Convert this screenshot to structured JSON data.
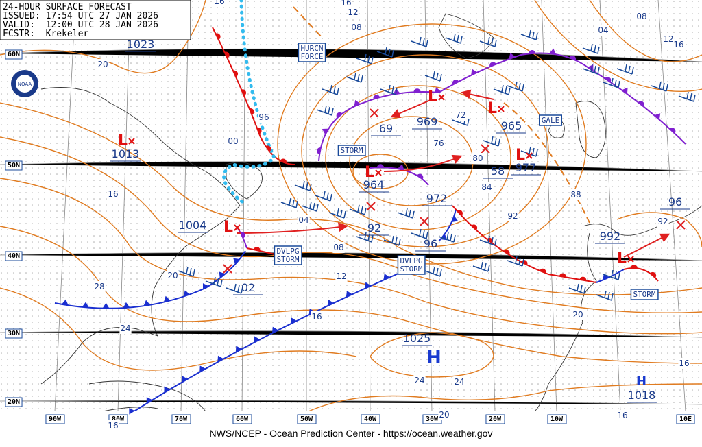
{
  "header": {
    "title": "24-HOUR SURFACE FORECAST",
    "issued": "ISSUED: 17:54 UTC 27 JAN 2026",
    "valid": "VALID:  12:00 UTC 28 JAN 2026",
    "forecaster": "FCSTR:  Krekeler"
  },
  "footer": "NWS/NCEP - Ocean Prediction Center - https://ocean.weather.gov",
  "logo": "NOAA",
  "symbols": {
    "high": "H",
    "low": "L"
  },
  "longitude_labels": [
    "90W",
    "80W",
    "70W",
    "60W",
    "50W",
    "40W",
    "30W",
    "20W",
    "10W",
    "10E"
  ],
  "latitude_labels": [
    "60N",
    "50N",
    "40N",
    "30N",
    "20N"
  ],
  "pressure_labels": [
    "1023",
    "1013",
    "1004",
    "02",
    "964",
    "92",
    "96",
    "972",
    "69",
    "969",
    "965",
    "58",
    "977",
    "992",
    "96",
    "1025",
    "1018"
  ],
  "warning_labels": [
    {
      "lines": [
        "HURCN",
        "FORCE"
      ]
    },
    {
      "lines": [
        "STORM"
      ]
    },
    {
      "lines": [
        "GALE"
      ]
    },
    {
      "lines": [
        "DVLPG",
        "STORM"
      ]
    },
    {
      "lines": [
        "DVLPG",
        "STORM"
      ]
    },
    {
      "lines": [
        "STORM"
      ]
    }
  ],
  "isobar_labels": [
    "16",
    "12",
    "08",
    "16",
    "20",
    "16",
    "96",
    "00",
    "04",
    "08",
    "12",
    "16",
    "20",
    "24",
    "28",
    "76",
    "80",
    "84",
    "88",
    "92",
    "72",
    "08",
    "04",
    "12",
    "16",
    "92",
    "20",
    "24",
    "24",
    "20",
    "16",
    "16",
    "16"
  ]
}
